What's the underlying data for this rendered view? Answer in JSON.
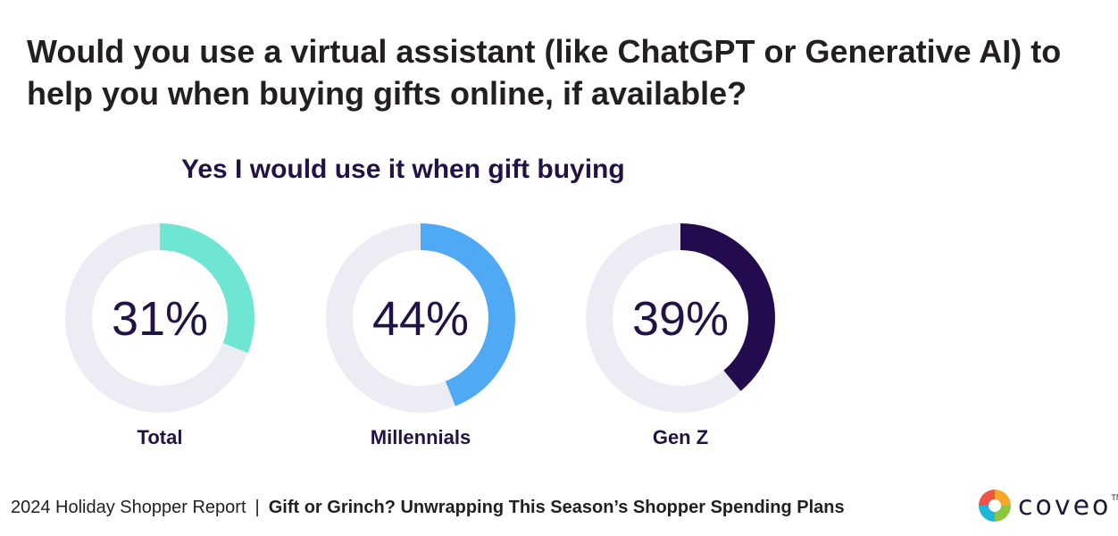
{
  "title": "Would you use a virtual assistant (like ChatGPT or Generative AI) to help you when buying gifts online, if available?",
  "chart_data": {
    "type": "pie",
    "subtitle": "Yes I would use it when gift buying",
    "series": [
      {
        "name": "Total",
        "value": 31,
        "display": "31%",
        "color": "#6ee6d2"
      },
      {
        "name": "Millennials",
        "value": 44,
        "display": "44%",
        "color": "#4fa9f5"
      },
      {
        "name": "Gen Z",
        "value": 39,
        "display": "39%",
        "color": "#230b4d"
      }
    ],
    "track_color": "#ececf5"
  },
  "footer": {
    "report": "2024 Holiday Shopper Report",
    "separator": "|",
    "tagline": "Gift or Grinch? Unwrapping This Season’s Shopper Spending Plans"
  },
  "logo": {
    "text": "coveo",
    "tm": "TM",
    "colors": [
      "#f05245",
      "#f9a72b",
      "#1cb7d9",
      "#8cc63f"
    ]
  }
}
